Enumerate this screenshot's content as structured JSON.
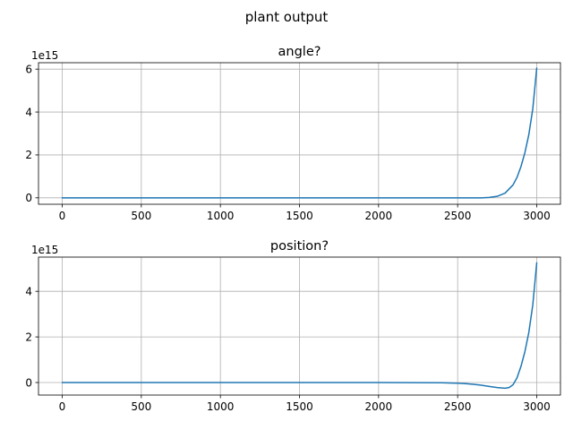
{
  "figure": {
    "suptitle": "plant output"
  },
  "chart_data": [
    {
      "type": "line",
      "title": "angle?",
      "xlabel": "",
      "ylabel": "",
      "offset_label": "1e15",
      "xlim": [
        -150,
        3150
      ],
      "ylim": [
        -0.3,
        6.3
      ],
      "xticks": [
        0,
        500,
        1000,
        1500,
        2000,
        2500,
        3000
      ],
      "yticks": [
        0,
        2,
        4,
        6
      ],
      "grid": true,
      "series": [
        {
          "color": "#1f77b4",
          "x": [
            0,
            500,
            1000,
            1500,
            2000,
            2500,
            2650,
            2700,
            2750,
            2800,
            2850,
            2875,
            2900,
            2925,
            2950,
            2975,
            3000
          ],
          "y": [
            0,
            0,
            0,
            0,
            0,
            0,
            0,
            0.02,
            0.07,
            0.22,
            0.6,
            0.95,
            1.45,
            2.1,
            2.95,
            4.15,
            6.05
          ]
        }
      ]
    },
    {
      "type": "line",
      "title": "position?",
      "xlabel": "",
      "ylabel": "",
      "offset_label": "1e15",
      "xlim": [
        -150,
        3150
      ],
      "ylim": [
        -0.55,
        5.5
      ],
      "xticks": [
        0,
        500,
        1000,
        1500,
        2000,
        2500,
        3000
      ],
      "yticks": [
        0,
        2,
        4
      ],
      "grid": true,
      "series": [
        {
          "color": "#1f77b4",
          "x": [
            0,
            500,
            1000,
            1500,
            2000,
            2400,
            2500,
            2550,
            2600,
            2650,
            2700,
            2750,
            2800,
            2825,
            2850,
            2875,
            2900,
            2925,
            2950,
            2975,
            3000
          ],
          "y": [
            0,
            0,
            0,
            0,
            0,
            -0.01,
            -0.03,
            -0.05,
            -0.08,
            -0.12,
            -0.17,
            -0.22,
            -0.25,
            -0.22,
            -0.1,
            0.2,
            0.7,
            1.35,
            2.2,
            3.4,
            5.25
          ]
        }
      ]
    }
  ]
}
